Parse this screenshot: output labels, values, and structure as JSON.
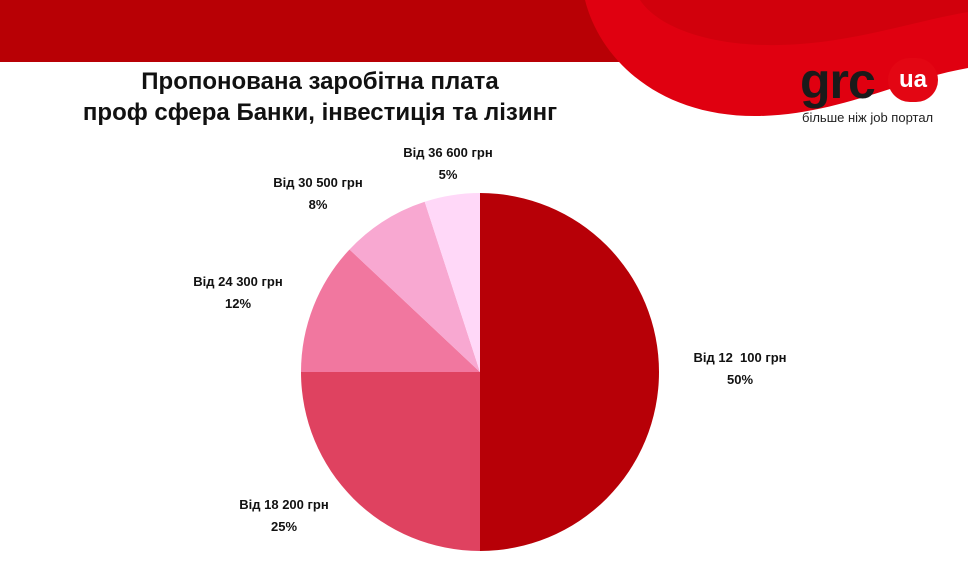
{
  "header": {
    "title_lines": [
      "Пропонована заробітна плата",
      "проф сфера Банки, інвестиція та лізинг"
    ]
  },
  "logo": {
    "brand": "grc",
    "badge": "ua",
    "tagline": "більше ніж job портал"
  },
  "colors": {
    "banner": "#b80005",
    "banner_swirl": "#e00010"
  },
  "chart_data": {
    "type": "pie",
    "title": "Пропонована заробітна плата проф сфера Банки, інвестиція та лізинг",
    "legend": "none",
    "slices": [
      {
        "label": "Від 12  100 грн",
        "value": 50,
        "value_label": "50%",
        "color": "#b70007"
      },
      {
        "label": "Від 18 200 грн",
        "value": 25,
        "value_label": "25%",
        "color": "#df4260"
      },
      {
        "label": "Від 24 300 грн",
        "value": 12,
        "value_label": "12%",
        "color": "#f1779f"
      },
      {
        "label": "Від 30 500 грн",
        "value": 8,
        "value_label": "8%",
        "color": "#f8a8d1"
      },
      {
        "label": "Від 36 600 грн",
        "value": 5,
        "value_label": "5%",
        "color": "#ffd8f8"
      }
    ]
  }
}
